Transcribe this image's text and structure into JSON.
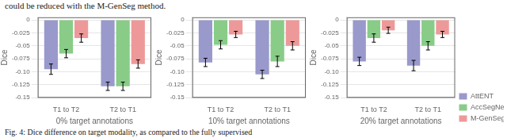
{
  "annotations": [
    "could be reduced with the M-GenSeg method.",
    "Fig. 4: Dice difference on target modality, as compared to the fully supervised"
  ],
  "chart_data": [
    {
      "type": "bar",
      "xlabel": "0% target annotations",
      "ylabel": "Dice",
      "categories": [
        "T1 to T2",
        "T2 to T1"
      ],
      "series": [
        {
          "name": "AttENT",
          "color": "#9999cc",
          "values": [
            -0.095,
            -0.128
          ],
          "errors": [
            0.01,
            0.008
          ]
        },
        {
          "name": "AccSegNet",
          "color": "#88cc88",
          "values": [
            -0.065,
            -0.128
          ],
          "errors": [
            0.008,
            0.008
          ]
        },
        {
          "name": "M-GenSeg",
          "color": "#ee9999",
          "values": [
            -0.035,
            -0.085
          ],
          "errors": [
            0.008,
            0.008
          ]
        }
      ],
      "ylim": [
        -0.15,
        0.005
      ],
      "yticks": [
        0,
        -0.025,
        -0.05,
        -0.075,
        {
          "value": -0.1,
          "label": "-0.10"
        },
        -0.125,
        -0.15
      ],
      "grid": true
    },
    {
      "type": "bar",
      "xlabel": "10% target annotations",
      "ylabel": "Dice",
      "categories": [
        "T1 to T2",
        "T2 to T1"
      ],
      "series": [
        {
          "name": "AttENT",
          "color": "#9999cc",
          "values": [
            -0.082,
            -0.105
          ],
          "errors": [
            0.008,
            0.008
          ]
        },
        {
          "name": "AccSegNet",
          "color": "#88cc88",
          "values": [
            -0.048,
            -0.08
          ],
          "errors": [
            0.008,
            0.01
          ]
        },
        {
          "name": "M-GenSeg",
          "color": "#ee9999",
          "values": [
            -0.028,
            -0.05
          ],
          "errors": [
            0.006,
            0.008
          ]
        }
      ],
      "ylim": [
        -0.15,
        0.005
      ],
      "yticks": [
        0,
        -0.025,
        -0.05,
        -0.075,
        {
          "value": -0.1,
          "label": "-0.10"
        },
        -0.125,
        -0.15
      ],
      "grid": true
    },
    {
      "type": "bar",
      "xlabel": "20% target annotations",
      "ylabel": "Dice",
      "categories": [
        "T1 to T2",
        "T2 to T1"
      ],
      "series": [
        {
          "name": "AttENT",
          "color": "#9999cc",
          "values": [
            -0.08,
            -0.088
          ],
          "errors": [
            0.008,
            0.01
          ]
        },
        {
          "name": "AccSegNet",
          "color": "#88cc88",
          "values": [
            -0.035,
            -0.05
          ],
          "errors": [
            0.008,
            0.008
          ]
        },
        {
          "name": "M-GenSeg",
          "color": "#ee9999",
          "values": [
            -0.02,
            -0.028
          ],
          "errors": [
            0.006,
            0.006
          ]
        }
      ],
      "ylim": [
        -0.15,
        0.005
      ],
      "yticks": [
        0,
        -0.025,
        -0.05,
        -0.075,
        {
          "value": -0.1,
          "label": "-0.10"
        },
        -0.125,
        -0.15
      ],
      "grid": true,
      "legend": "lower right"
    }
  ]
}
